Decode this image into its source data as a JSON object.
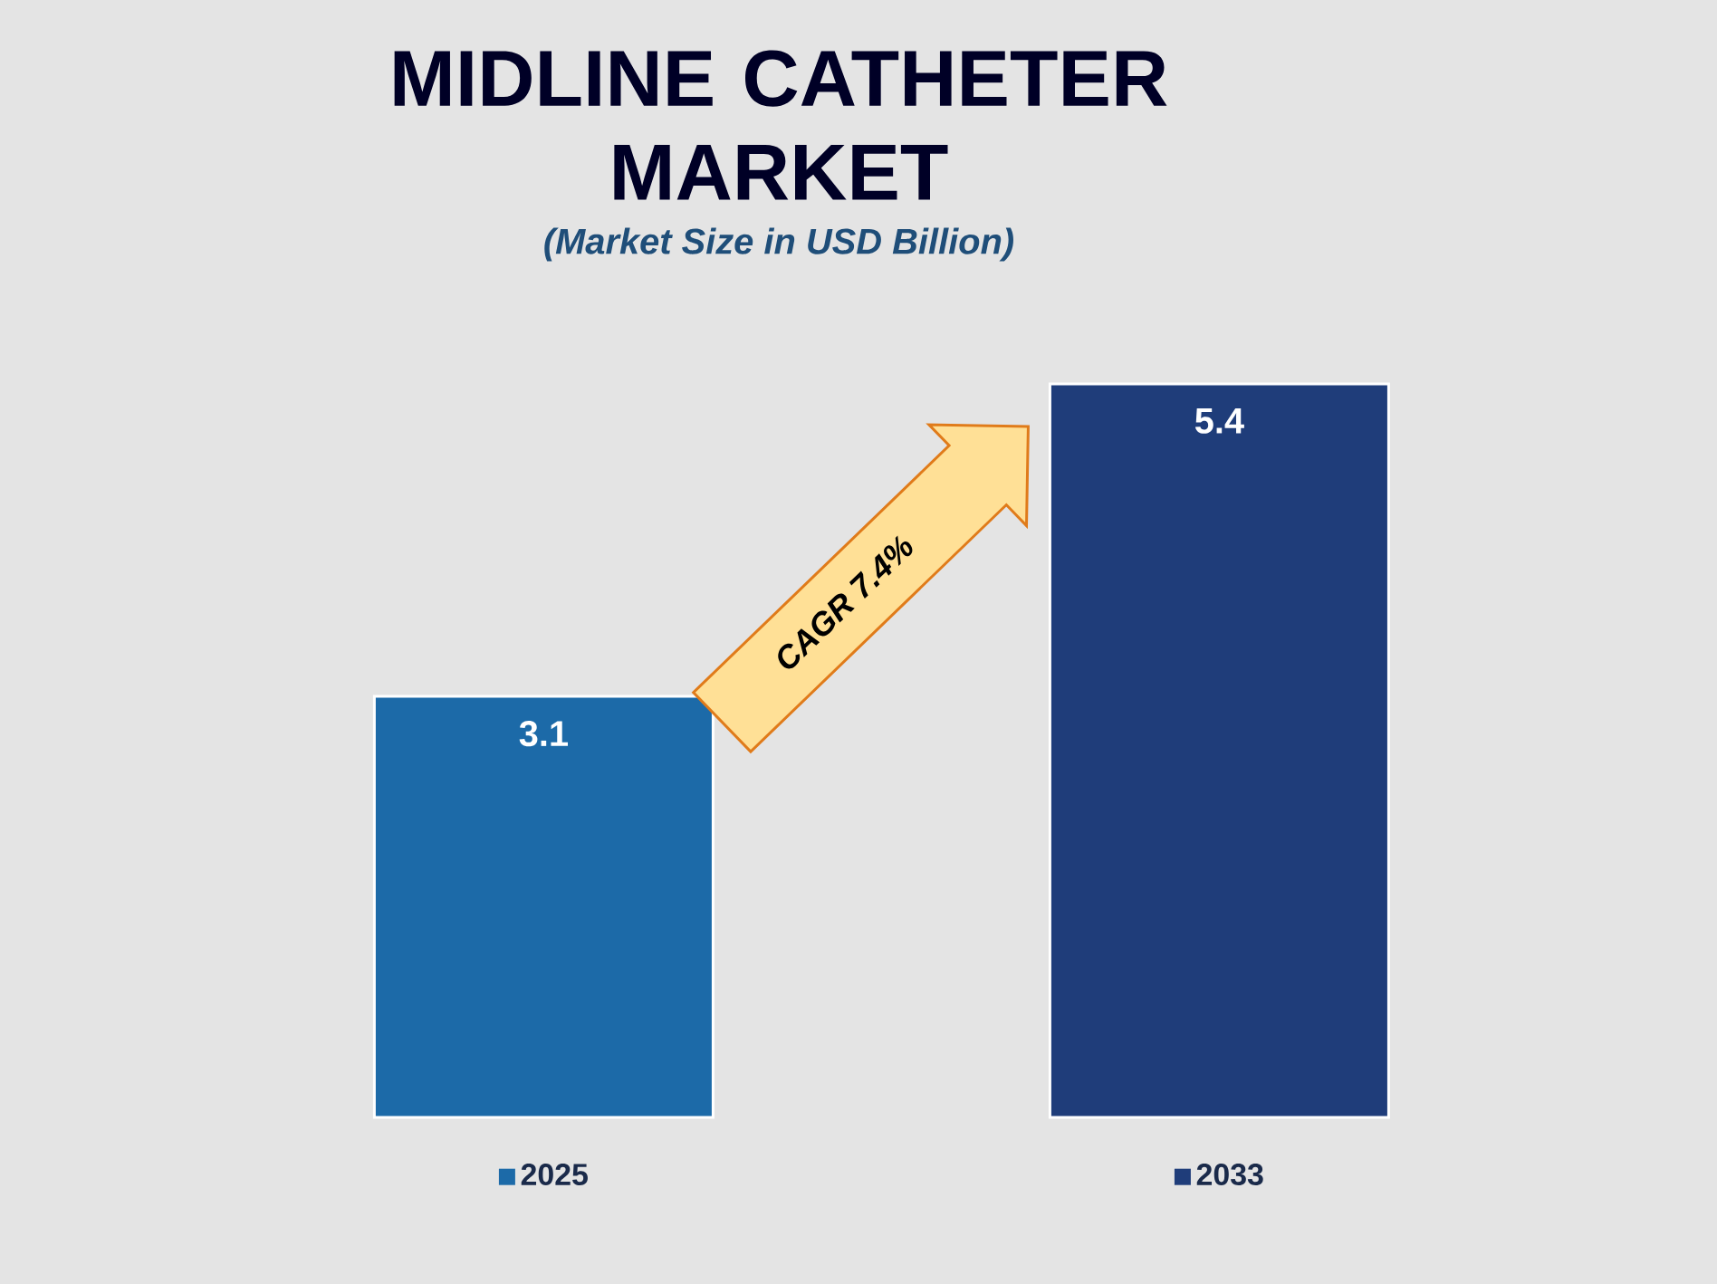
{
  "chart_data": {
    "type": "bar",
    "title": "MIDLINE CATHETER MARKET",
    "subtitle": "(Market Size in USD Billion)",
    "categories": [
      "2025",
      "2033"
    ],
    "values": [
      3.1,
      5.4
    ],
    "colors": [
      "#1c6aa8",
      "#1f3d7a"
    ],
    "data_labels": true,
    "tick_labels": "x",
    "annotations": [
      "CAGR 7.4%"
    ]
  }
}
